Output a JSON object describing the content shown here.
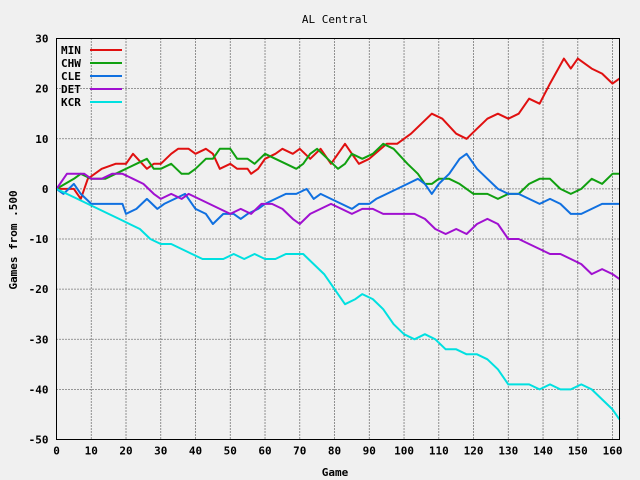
{
  "chart_data": {
    "type": "line",
    "title": "AL Central",
    "xlabel": "Game",
    "ylabel": "Games from .500",
    "xlim": [
      0,
      162
    ],
    "ylim": [
      -50,
      30
    ],
    "xticks": [
      0,
      10,
      20,
      30,
      40,
      50,
      60,
      70,
      80,
      90,
      100,
      110,
      120,
      130,
      140,
      150,
      160
    ],
    "yticks": [
      30,
      20,
      10,
      0,
      -10,
      -20,
      -30,
      -40,
      -50
    ],
    "grid": true,
    "legend": "top-left",
    "series": [
      {
        "name": "MIN",
        "color": "#e01010",
        "points": [
          [
            0,
            0
          ],
          [
            5,
            0
          ],
          [
            7,
            -2
          ],
          [
            9,
            2
          ],
          [
            13,
            4
          ],
          [
            17,
            5
          ],
          [
            20,
            5
          ],
          [
            22,
            7
          ],
          [
            26,
            4
          ],
          [
            28,
            5
          ],
          [
            30,
            5
          ],
          [
            33,
            7
          ],
          [
            35,
            8
          ],
          [
            38,
            8
          ],
          [
            40,
            7
          ],
          [
            43,
            8
          ],
          [
            45,
            7
          ],
          [
            47,
            4
          ],
          [
            50,
            5
          ],
          [
            52,
            4
          ],
          [
            55,
            4
          ],
          [
            56,
            3
          ],
          [
            58,
            4
          ],
          [
            60,
            6
          ],
          [
            63,
            7
          ],
          [
            65,
            8
          ],
          [
            68,
            7
          ],
          [
            70,
            8
          ],
          [
            73,
            6
          ],
          [
            76,
            8
          ],
          [
            79,
            5
          ],
          [
            83,
            9
          ],
          [
            85,
            7
          ],
          [
            87,
            5
          ],
          [
            90,
            6
          ],
          [
            95,
            9
          ],
          [
            98,
            9
          ],
          [
            102,
            11
          ],
          [
            105,
            13
          ],
          [
            108,
            15
          ],
          [
            111,
            14
          ],
          [
            115,
            11
          ],
          [
            118,
            10
          ],
          [
            121,
            12
          ],
          [
            124,
            14
          ],
          [
            127,
            15
          ],
          [
            130,
            14
          ],
          [
            133,
            15
          ],
          [
            136,
            18
          ],
          [
            139,
            17
          ],
          [
            142,
            21
          ],
          [
            146,
            26
          ],
          [
            148,
            24
          ],
          [
            150,
            26
          ],
          [
            154,
            24
          ],
          [
            157,
            23
          ],
          [
            160,
            21
          ],
          [
            162,
            22
          ]
        ]
      },
      {
        "name": "CHW",
        "color": "#10a010",
        "points": [
          [
            0,
            0
          ],
          [
            5,
            2
          ],
          [
            7,
            3
          ],
          [
            10,
            2
          ],
          [
            14,
            2
          ],
          [
            17,
            3
          ],
          [
            20,
            4
          ],
          [
            23,
            5
          ],
          [
            26,
            6
          ],
          [
            28,
            4
          ],
          [
            30,
            4
          ],
          [
            33,
            5
          ],
          [
            36,
            3
          ],
          [
            38,
            3
          ],
          [
            40,
            4
          ],
          [
            43,
            6
          ],
          [
            45,
            6
          ],
          [
            47,
            8
          ],
          [
            50,
            8
          ],
          [
            52,
            6
          ],
          [
            55,
            6
          ],
          [
            57,
            5
          ],
          [
            60,
            7
          ],
          [
            63,
            6
          ],
          [
            66,
            5
          ],
          [
            69,
            4
          ],
          [
            71,
            5
          ],
          [
            73,
            7
          ],
          [
            75,
            8
          ],
          [
            78,
            6
          ],
          [
            81,
            4
          ],
          [
            83,
            5
          ],
          [
            85,
            7
          ],
          [
            88,
            6
          ],
          [
            91,
            7
          ],
          [
            94,
            9
          ],
          [
            97,
            8
          ],
          [
            101,
            5
          ],
          [
            104,
            3
          ],
          [
            106,
            1
          ],
          [
            108,
            1
          ],
          [
            110,
            2
          ],
          [
            113,
            2
          ],
          [
            116,
            1
          ],
          [
            120,
            -1
          ],
          [
            124,
            -1
          ],
          [
            127,
            -2
          ],
          [
            130,
            -1
          ],
          [
            133,
            -1
          ],
          [
            136,
            1
          ],
          [
            139,
            2
          ],
          [
            142,
            2
          ],
          [
            145,
            0
          ],
          [
            148,
            -1
          ],
          [
            151,
            0
          ],
          [
            154,
            2
          ],
          [
            157,
            1
          ],
          [
            160,
            3
          ],
          [
            162,
            3
          ]
        ]
      },
      {
        "name": "CLE",
        "color": "#1070e0",
        "points": [
          [
            0,
            0
          ],
          [
            2,
            -1
          ],
          [
            5,
            1
          ],
          [
            7,
            -1
          ],
          [
            10,
            -3
          ],
          [
            13,
            -3
          ],
          [
            16,
            -3
          ],
          [
            19,
            -3
          ],
          [
            20,
            -5
          ],
          [
            23,
            -4
          ],
          [
            26,
            -2
          ],
          [
            29,
            -4
          ],
          [
            31,
            -3
          ],
          [
            34,
            -2
          ],
          [
            37,
            -1
          ],
          [
            40,
            -4
          ],
          [
            43,
            -5
          ],
          [
            45,
            -7
          ],
          [
            48,
            -5
          ],
          [
            51,
            -5
          ],
          [
            53,
            -6
          ],
          [
            55,
            -5
          ],
          [
            58,
            -4
          ],
          [
            60,
            -3
          ],
          [
            63,
            -2
          ],
          [
            66,
            -1
          ],
          [
            69,
            -1
          ],
          [
            72,
            0
          ],
          [
            74,
            -2
          ],
          [
            76,
            -1
          ],
          [
            79,
            -2
          ],
          [
            82,
            -3
          ],
          [
            85,
            -4
          ],
          [
            87,
            -3
          ],
          [
            90,
            -3
          ],
          [
            92,
            -2
          ],
          [
            95,
            -1
          ],
          [
            98,
            0
          ],
          [
            101,
            1
          ],
          [
            104,
            2
          ],
          [
            106,
            1
          ],
          [
            108,
            -1
          ],
          [
            110,
            1
          ],
          [
            113,
            3
          ],
          [
            116,
            6
          ],
          [
            118,
            7
          ],
          [
            121,
            4
          ],
          [
            124,
            2
          ],
          [
            127,
            0
          ],
          [
            130,
            -1
          ],
          [
            133,
            -1
          ],
          [
            136,
            -2
          ],
          [
            139,
            -3
          ],
          [
            142,
            -2
          ],
          [
            145,
            -3
          ],
          [
            148,
            -5
          ],
          [
            151,
            -5
          ],
          [
            154,
            -4
          ],
          [
            157,
            -3
          ],
          [
            160,
            -3
          ],
          [
            162,
            -3
          ]
        ]
      },
      {
        "name": "DET",
        "color": "#a010d0",
        "points": [
          [
            0,
            0
          ],
          [
            3,
            3
          ],
          [
            5,
            3
          ],
          [
            8,
            3
          ],
          [
            10,
            2
          ],
          [
            13,
            2
          ],
          [
            16,
            3
          ],
          [
            19,
            3
          ],
          [
            22,
            2
          ],
          [
            25,
            1
          ],
          [
            28,
            -1
          ],
          [
            30,
            -2
          ],
          [
            33,
            -1
          ],
          [
            36,
            -2
          ],
          [
            38,
            -1
          ],
          [
            41,
            -2
          ],
          [
            44,
            -3
          ],
          [
            47,
            -4
          ],
          [
            50,
            -5
          ],
          [
            53,
            -4
          ],
          [
            56,
            -5
          ],
          [
            59,
            -3
          ],
          [
            62,
            -3
          ],
          [
            65,
            -4
          ],
          [
            68,
            -6
          ],
          [
            70,
            -7
          ],
          [
            73,
            -5
          ],
          [
            76,
            -4
          ],
          [
            79,
            -3
          ],
          [
            82,
            -4
          ],
          [
            85,
            -5
          ],
          [
            88,
            -4
          ],
          [
            91,
            -4
          ],
          [
            94,
            -5
          ],
          [
            97,
            -5
          ],
          [
            100,
            -5
          ],
          [
            103,
            -5
          ],
          [
            106,
            -6
          ],
          [
            109,
            -8
          ],
          [
            112,
            -9
          ],
          [
            115,
            -8
          ],
          [
            118,
            -9
          ],
          [
            121,
            -7
          ],
          [
            124,
            -6
          ],
          [
            127,
            -7
          ],
          [
            130,
            -10
          ],
          [
            133,
            -10
          ],
          [
            136,
            -11
          ],
          [
            139,
            -12
          ],
          [
            142,
            -13
          ],
          [
            145,
            -13
          ],
          [
            148,
            -14
          ],
          [
            151,
            -15
          ],
          [
            154,
            -17
          ],
          [
            157,
            -16
          ],
          [
            160,
            -17
          ],
          [
            162,
            -18
          ]
        ]
      },
      {
        "name": "KCR",
        "color": "#00e0e0",
        "points": [
          [
            0,
            0
          ],
          [
            3,
            -1
          ],
          [
            6,
            -2
          ],
          [
            9,
            -3
          ],
          [
            12,
            -4
          ],
          [
            15,
            -5
          ],
          [
            18,
            -6
          ],
          [
            21,
            -7
          ],
          [
            24,
            -8
          ],
          [
            27,
            -10
          ],
          [
            30,
            -11
          ],
          [
            33,
            -11
          ],
          [
            36,
            -12
          ],
          [
            39,
            -13
          ],
          [
            42,
            -14
          ],
          [
            45,
            -14
          ],
          [
            48,
            -14
          ],
          [
            51,
            -13
          ],
          [
            54,
            -14
          ],
          [
            57,
            -13
          ],
          [
            60,
            -14
          ],
          [
            63,
            -14
          ],
          [
            66,
            -13
          ],
          [
            69,
            -13
          ],
          [
            71,
            -13
          ],
          [
            74,
            -15
          ],
          [
            77,
            -17
          ],
          [
            80,
            -20
          ],
          [
            83,
            -23
          ],
          [
            86,
            -22
          ],
          [
            88,
            -21
          ],
          [
            91,
            -22
          ],
          [
            94,
            -24
          ],
          [
            97,
            -27
          ],
          [
            100,
            -29
          ],
          [
            103,
            -30
          ],
          [
            106,
            -29
          ],
          [
            109,
            -30
          ],
          [
            112,
            -32
          ],
          [
            115,
            -32
          ],
          [
            118,
            -33
          ],
          [
            121,
            -33
          ],
          [
            124,
            -34
          ],
          [
            127,
            -36
          ],
          [
            130,
            -39
          ],
          [
            133,
            -39
          ],
          [
            136,
            -39
          ],
          [
            139,
            -40
          ],
          [
            142,
            -39
          ],
          [
            145,
            -40
          ],
          [
            148,
            -40
          ],
          [
            151,
            -39
          ],
          [
            154,
            -40
          ],
          [
            157,
            -42
          ],
          [
            160,
            -44
          ],
          [
            162,
            -46
          ]
        ]
      }
    ]
  }
}
